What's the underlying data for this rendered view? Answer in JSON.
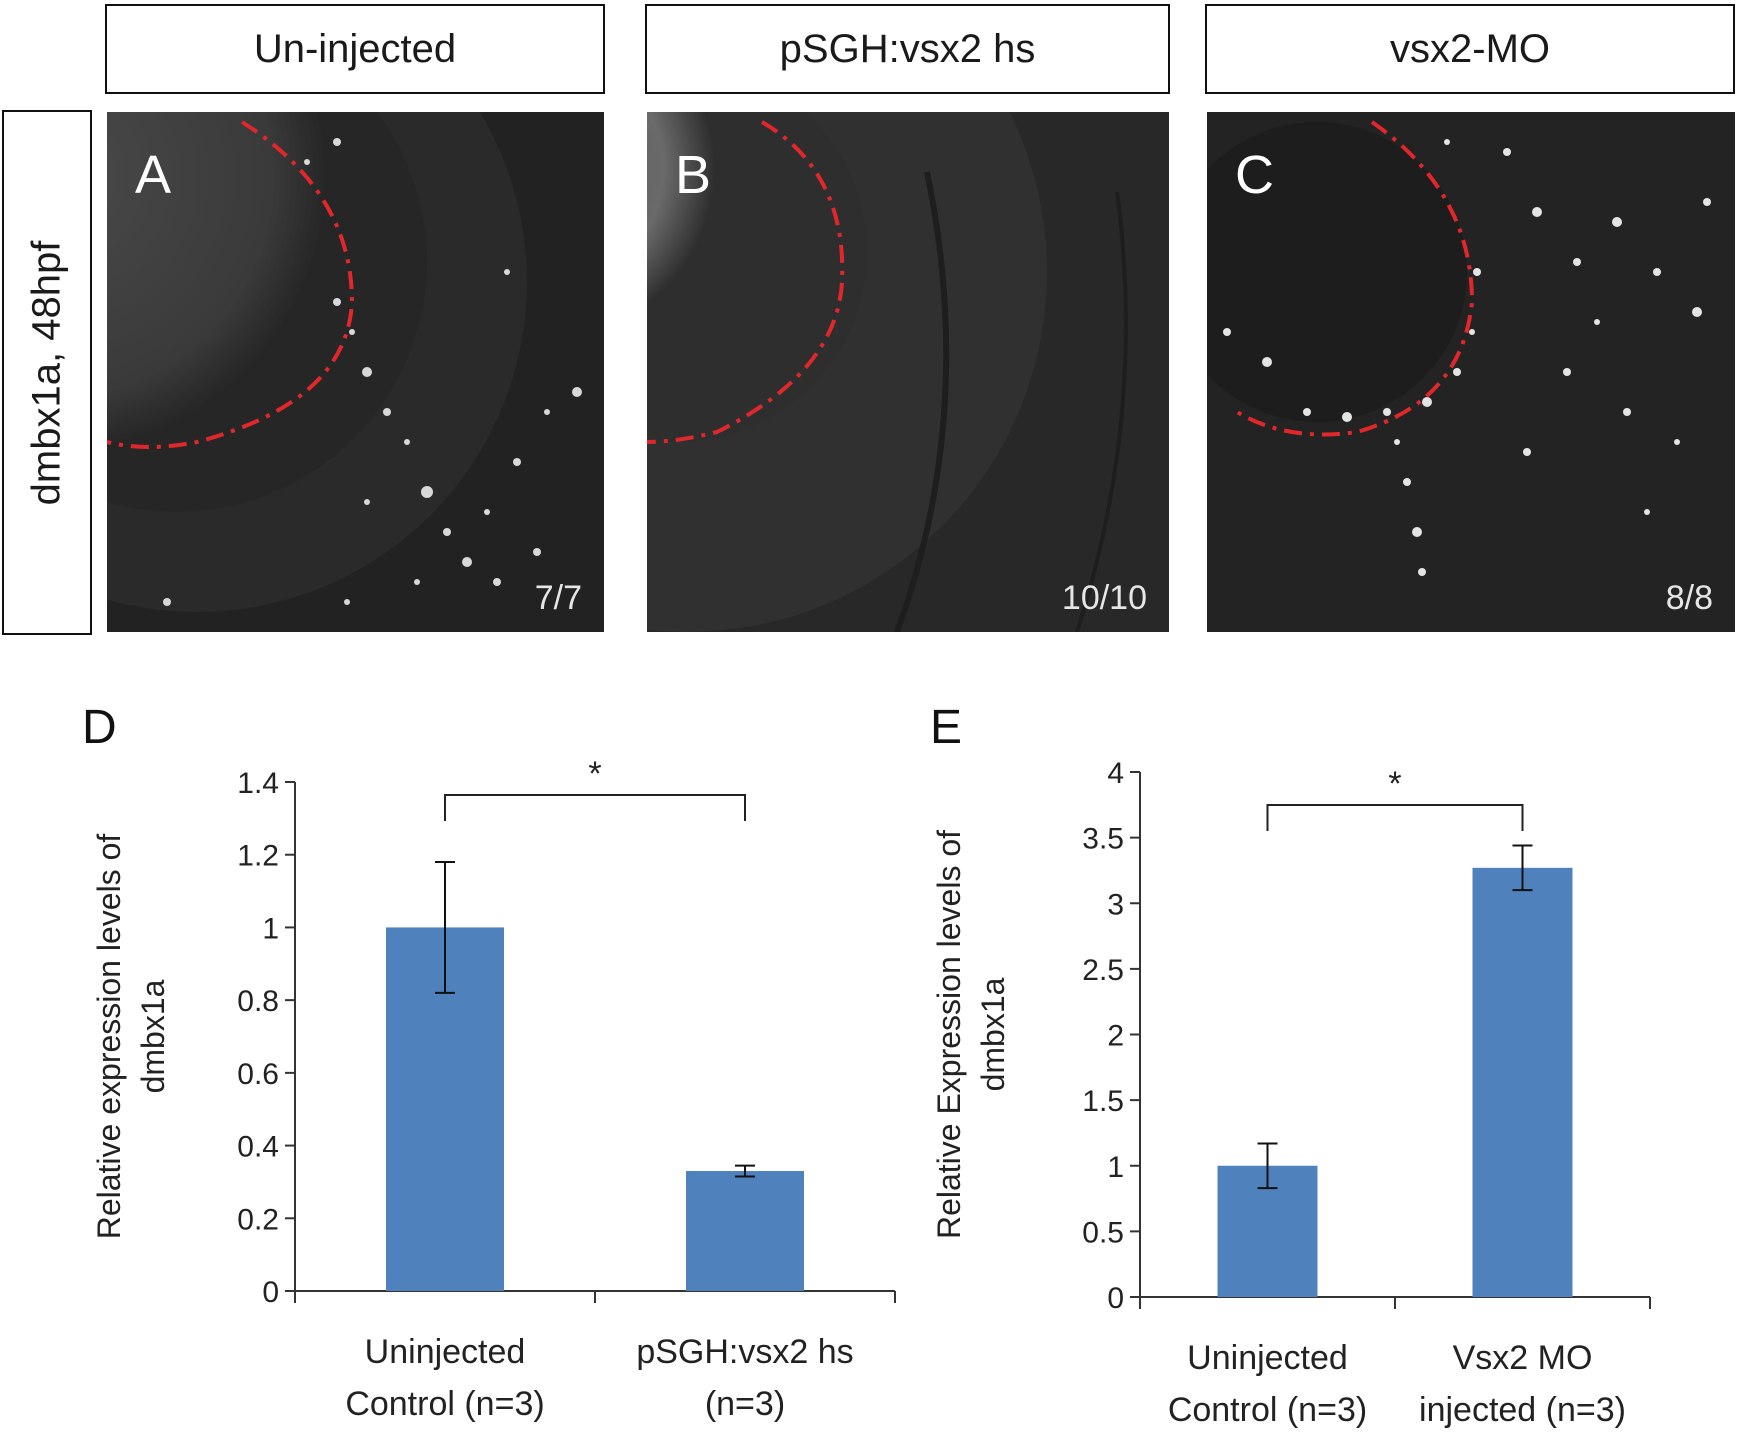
{
  "figure": {
    "row_label": "dmbx1a, 48hpf",
    "columns": [
      {
        "label": "Un-injected"
      },
      {
        "label": "pSGH:vsx2 hs"
      },
      {
        "label": "vsx2-MO"
      }
    ],
    "panels": [
      {
        "letter": "A",
        "count": "7/7"
      },
      {
        "letter": "B",
        "count": "10/10"
      },
      {
        "letter": "C",
        "count": "8/8"
      }
    ]
  },
  "chart_data": [
    {
      "type": "bar",
      "panel": "D",
      "categories": [
        "Uninjected Control (n=3)",
        "pSGH:vsx2 hs (n=3)"
      ],
      "category_lines": [
        [
          "Uninjected",
          "Control (n=3)"
        ],
        [
          "pSGH:vsx2 hs",
          "(n=3)"
        ]
      ],
      "values": [
        1.0,
        0.33
      ],
      "errors": [
        0.18,
        0.015
      ],
      "ylabel_lines": [
        "Relative expression levels of",
        "dmbx1a"
      ],
      "ylim": [
        0,
        1.4
      ],
      "yticks": [
        "0",
        "0.2",
        "0.4",
        "0.6",
        "0.8",
        "1",
        "1.2",
        "1.4"
      ],
      "significance": "*",
      "bar_color": "#4f81bd"
    },
    {
      "type": "bar",
      "panel": "E",
      "categories": [
        "Uninjected Control (n=3)",
        "Vsx2 MO injected (n=3)"
      ],
      "category_lines": [
        [
          "Uninjected",
          "Control (n=3)"
        ],
        [
          "Vsx2 MO",
          "injected (n=3)"
        ]
      ],
      "values": [
        1.0,
        3.27
      ],
      "errors": [
        0.17,
        0.17
      ],
      "ylabel_lines": [
        "Relative Expression levels of",
        "dmbx1a"
      ],
      "ylim": [
        0,
        4
      ],
      "yticks": [
        "0",
        "0.5",
        "1",
        "1.5",
        "2",
        "2.5",
        "3",
        "3.5",
        "4"
      ],
      "significance": "*",
      "bar_color": "#4f81bd"
    }
  ]
}
